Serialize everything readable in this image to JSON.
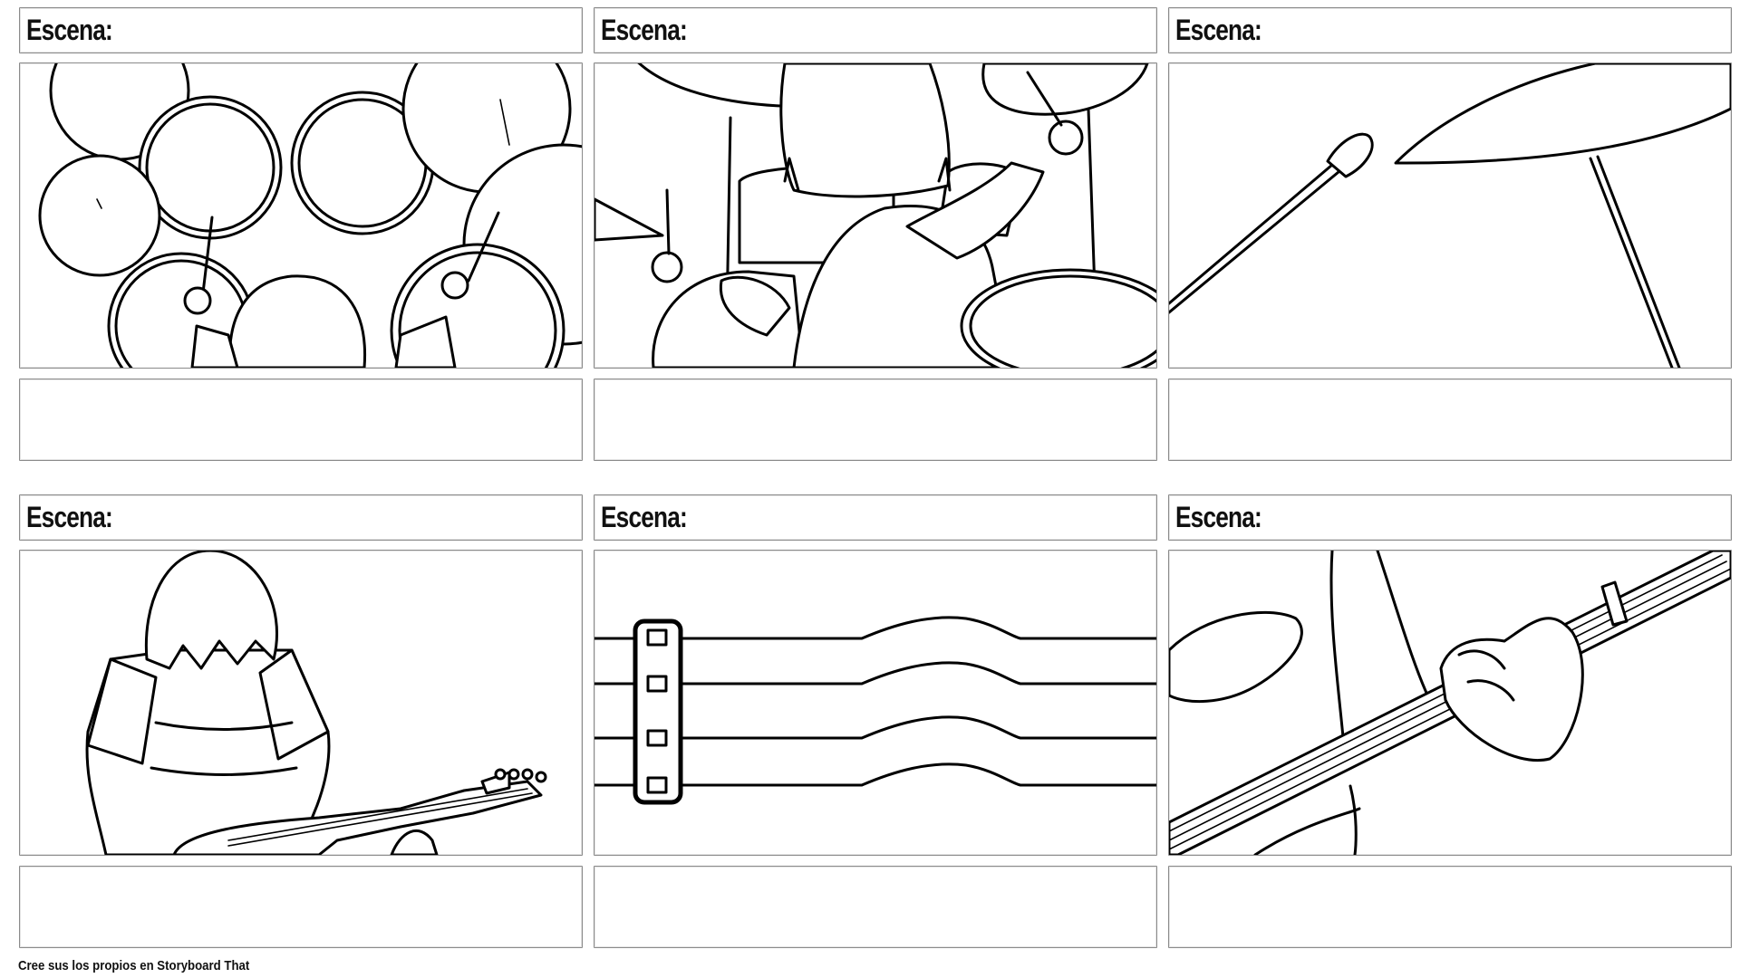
{
  "storyboard": {
    "cells": [
      {
        "title": "Escena:",
        "description": "",
        "illustration": "drum-kit-top-view"
      },
      {
        "title": "Escena:",
        "description": "",
        "illustration": "drummer-back-view"
      },
      {
        "title": "Escena:",
        "description": "",
        "illustration": "drumstick-and-cymbal-closeup"
      },
      {
        "title": "Escena:",
        "description": "",
        "illustration": "bass-player-back-view"
      },
      {
        "title": "Escena:",
        "description": "",
        "illustration": "vibrating-strings-closeup"
      },
      {
        "title": "Escena:",
        "description": "",
        "illustration": "hand-on-guitar-neck-closeup"
      }
    ]
  },
  "footer": {
    "text": "Cree sus los propios en Storyboard That"
  }
}
